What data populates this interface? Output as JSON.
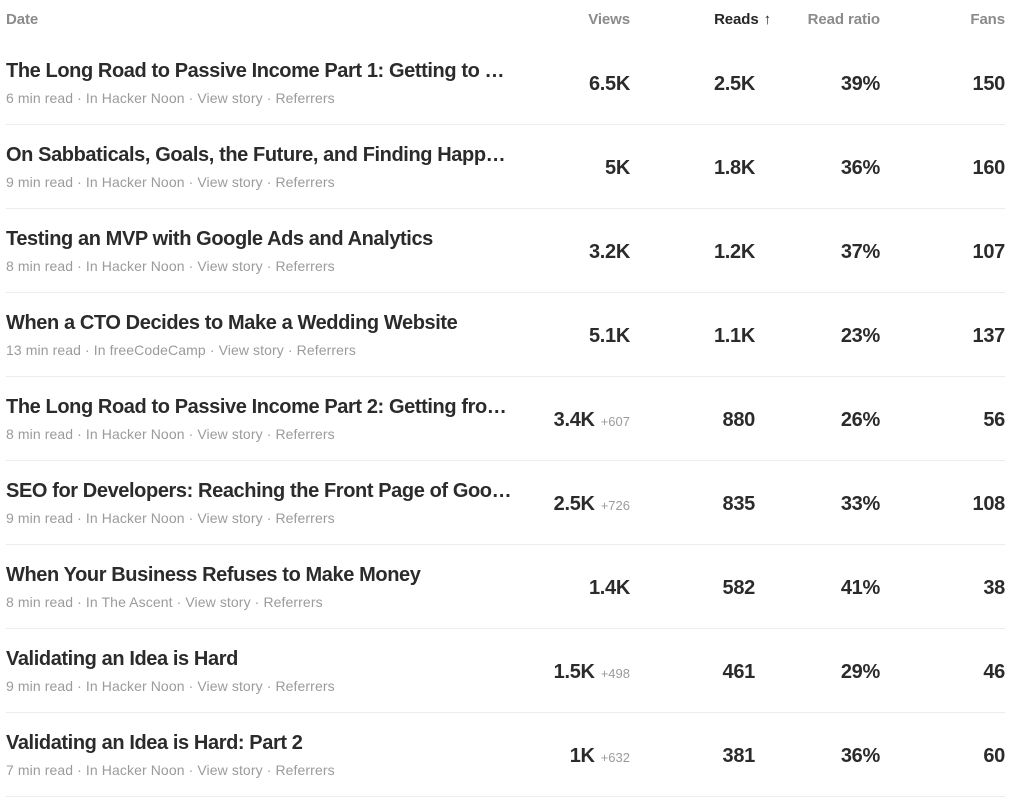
{
  "table": {
    "columns": {
      "date": "Date",
      "views": "Views",
      "reads": "Reads",
      "read_ratio": "Read ratio",
      "fans": "Fans"
    },
    "sort": {
      "column": "reads",
      "direction_icon": "↑"
    },
    "separator": "·",
    "links": {
      "view_story": "View story",
      "referrers": "Referrers"
    },
    "rows": [
      {
        "title": "The Long Road to Passive Income Part 1: Getting to …",
        "read_time": "6 min read",
        "publication": "In Hacker Noon",
        "views": "6.5K",
        "views_extra": "",
        "reads": "2.5K",
        "read_ratio": "39%",
        "fans": "150"
      },
      {
        "title": "On Sabbaticals, Goals, the Future, and Finding Happ…",
        "read_time": "9 min read",
        "publication": "In Hacker Noon",
        "views": "5K",
        "views_extra": "",
        "reads": "1.8K",
        "read_ratio": "36%",
        "fans": "160"
      },
      {
        "title": "Testing an MVP with Google Ads and Analytics",
        "read_time": "8 min read",
        "publication": "In Hacker Noon",
        "views": "3.2K",
        "views_extra": "",
        "reads": "1.2K",
        "read_ratio": "37%",
        "fans": "107"
      },
      {
        "title": "When a CTO Decides to Make a Wedding Website",
        "read_time": "13 min read",
        "publication": "In freeCodeCamp",
        "views": "5.1K",
        "views_extra": "",
        "reads": "1.1K",
        "read_ratio": "23%",
        "fans": "137"
      },
      {
        "title": "The Long Road to Passive Income Part 2: Getting fro…",
        "read_time": "8 min read",
        "publication": "In Hacker Noon",
        "views": "3.4K",
        "views_extra": "+607",
        "reads": "880",
        "read_ratio": "26%",
        "fans": "56"
      },
      {
        "title": "SEO for Developers: Reaching the Front Page of Goo…",
        "read_time": "9 min read",
        "publication": "In Hacker Noon",
        "views": "2.5K",
        "views_extra": "+726",
        "reads": "835",
        "read_ratio": "33%",
        "fans": "108"
      },
      {
        "title": "When Your Business Refuses to Make Money",
        "read_time": "8 min read",
        "publication": "In The Ascent",
        "views": "1.4K",
        "views_extra": "",
        "reads": "582",
        "read_ratio": "41%",
        "fans": "38"
      },
      {
        "title": "Validating an Idea is Hard",
        "read_time": "9 min read",
        "publication": "In Hacker Noon",
        "views": "1.5K",
        "views_extra": "+498",
        "reads": "461",
        "read_ratio": "29%",
        "fans": "46"
      },
      {
        "title": "Validating an Idea is Hard: Part 2",
        "read_time": "7 min read",
        "publication": "In Hacker Noon",
        "views": "1K",
        "views_extra": "+632",
        "reads": "381",
        "read_ratio": "36%",
        "fans": "60"
      }
    ]
  }
}
